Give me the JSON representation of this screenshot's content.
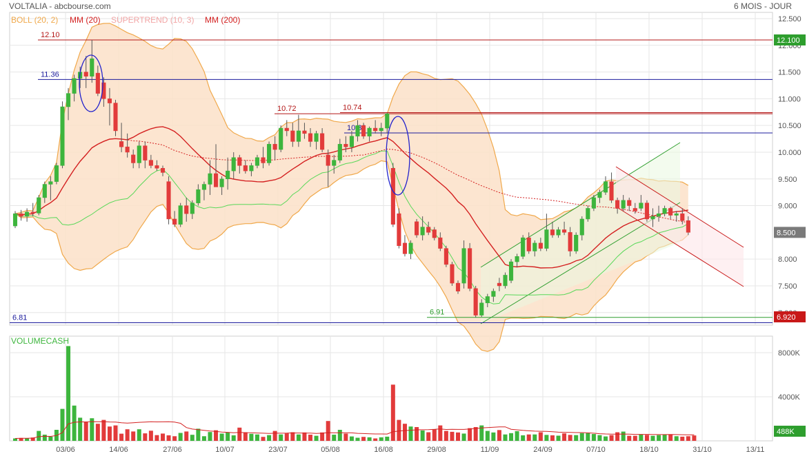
{
  "header": {
    "title": "VOLTALIA - abcbourse.com",
    "period": "6 MOIS - JOUR"
  },
  "legend": [
    {
      "label": "BOLL (20, 2)",
      "color": "#f0a84a"
    },
    {
      "label": "MM (20)",
      "color": "#d42020"
    },
    {
      "label": "SUPERTREND (10, 3)",
      "color": "#f2a6a6"
    },
    {
      "label": "MM (200)",
      "color": "#d42020"
    }
  ],
  "volume_label": "VOLUMECASH",
  "colors": {
    "up": "#3db53d",
    "down": "#e23b3b",
    "boll_fill": "#fbe0c8",
    "boll_line": "#f0a84a",
    "mm": "#d42020",
    "supertrend_up": "#58d858",
    "supertrend_down": "#f2a6a6",
    "grid": "#e6e6e6",
    "blue": "#1a1a9c"
  },
  "chart_data": [
    {
      "type": "candlestick",
      "name": "VOLTALIA",
      "ylim": [
        6.81,
        12.5
      ],
      "y_ticks": [
        "12.500",
        "12.000",
        "11.500",
        "11.000",
        "10.500",
        "10.000",
        "9.500",
        "9.000",
        "8.000",
        "7.500",
        "7.000"
      ],
      "x_ticks": [
        "03/06",
        "14/06",
        "27/06",
        "10/07",
        "23/07",
        "05/08",
        "16/08",
        "29/08",
        "11/09",
        "24/09",
        "07/10",
        "18/10",
        "31/10",
        "13/11"
      ],
      "price_badges": [
        {
          "value": "12.100",
          "color": "#2e9e2e"
        },
        {
          "value": "8.500",
          "color": "#7a7a7a"
        },
        {
          "value": "6.920",
          "color": "#c81818"
        }
      ],
      "horizontal_levels": [
        {
          "label": "12.10",
          "value": 12.1,
          "color": "#b31515"
        },
        {
          "label": "11.36",
          "value": 11.36,
          "color": "#1a1a9c"
        },
        {
          "label": "10.72",
          "value": 10.72,
          "color": "#b31515"
        },
        {
          "label": "10.74",
          "value": 10.74,
          "color": "#b31515"
        },
        {
          "label": "10.36",
          "value": 10.36,
          "color": "#1a1a9c"
        },
        {
          "label": "6.91",
          "value": 6.91,
          "color": "#2e9e2e"
        },
        {
          "label": "6.81",
          "value": 6.81,
          "color": "#1a1a9c"
        }
      ],
      "candles_ohlc": [
        [
          8.62,
          8.9,
          8.58,
          8.85
        ],
        [
          8.85,
          8.92,
          8.72,
          8.8
        ],
        [
          8.8,
          8.95,
          8.7,
          8.88
        ],
        [
          8.88,
          9.05,
          8.8,
          8.86
        ],
        [
          8.86,
          9.2,
          8.82,
          9.15
        ],
        [
          9.15,
          9.45,
          9.05,
          9.4
        ],
        [
          9.4,
          9.55,
          9.1,
          9.45
        ],
        [
          9.45,
          9.8,
          9.4,
          9.75
        ],
        [
          9.75,
          10.95,
          9.7,
          10.85
        ],
        [
          10.85,
          11.2,
          10.6,
          11.1
        ],
        [
          11.1,
          11.45,
          10.95,
          11.38
        ],
        [
          11.38,
          11.6,
          11.2,
          11.5
        ],
        [
          11.5,
          11.8,
          11.2,
          11.42
        ],
        [
          11.42,
          12.1,
          11.3,
          11.75
        ],
        [
          11.48,
          11.62,
          11.05,
          11.1
        ],
        [
          11.3,
          11.4,
          10.85,
          11.0
        ],
        [
          11.0,
          11.2,
          10.5,
          10.92
        ],
        [
          10.92,
          10.98,
          10.3,
          10.4
        ],
        [
          10.2,
          10.55,
          10.0,
          10.1
        ],
        [
          10.1,
          10.35,
          9.9,
          10.0
        ],
        [
          9.95,
          10.05,
          9.7,
          9.8
        ],
        [
          9.8,
          10.2,
          9.7,
          10.12
        ],
        [
          10.12,
          10.2,
          9.7,
          9.85
        ],
        [
          9.85,
          9.95,
          9.7,
          9.75
        ],
        [
          9.75,
          9.85,
          9.65,
          9.7
        ],
        [
          9.7,
          9.75,
          9.55,
          9.62
        ],
        [
          9.45,
          9.55,
          8.65,
          8.75
        ],
        [
          8.75,
          8.9,
          8.6,
          8.65
        ],
        [
          8.65,
          9.05,
          8.6,
          9.0
        ],
        [
          9.0,
          9.15,
          8.7,
          8.85
        ],
        [
          8.85,
          9.1,
          8.75,
          9.05
        ],
        [
          9.05,
          9.4,
          9.0,
          9.3
        ],
        [
          9.3,
          9.45,
          9.1,
          9.4
        ],
        [
          9.4,
          9.85,
          9.2,
          9.6
        ],
        [
          9.6,
          10.15,
          9.5,
          9.35
        ],
        [
          9.35,
          9.55,
          9.2,
          9.5
        ],
        [
          9.5,
          9.9,
          9.3,
          9.65
        ],
        [
          9.65,
          10.0,
          9.5,
          9.9
        ],
        [
          9.9,
          9.95,
          9.6,
          9.75
        ],
        [
          9.75,
          9.85,
          9.6,
          9.65
        ],
        [
          9.65,
          9.8,
          9.55,
          9.75
        ],
        [
          9.75,
          9.95,
          9.7,
          9.9
        ],
        [
          9.9,
          10.1,
          9.7,
          9.8
        ],
        [
          9.8,
          10.2,
          9.75,
          10.15
        ],
        [
          10.15,
          10.3,
          9.85,
          10.05
        ],
        [
          10.05,
          10.5,
          10.0,
          10.45
        ],
        [
          10.45,
          10.6,
          10.3,
          10.4
        ],
        [
          10.4,
          10.55,
          10.1,
          10.2
        ],
        [
          10.2,
          10.7,
          10.1,
          10.4
        ],
        [
          10.4,
          10.55,
          10.25,
          10.35
        ],
        [
          10.35,
          10.45,
          10.1,
          10.2
        ],
        [
          10.2,
          10.4,
          10.05,
          10.35
        ],
        [
          10.35,
          10.45,
          10.0,
          10.05
        ],
        [
          9.95,
          10.05,
          9.35,
          9.75
        ],
        [
          9.75,
          9.95,
          9.6,
          9.85
        ],
        [
          9.85,
          10.25,
          9.8,
          10.15
        ],
        [
          10.15,
          10.3,
          10.0,
          10.1
        ],
        [
          10.1,
          10.4,
          10.0,
          10.3
        ],
        [
          10.3,
          10.6,
          10.2,
          10.5
        ],
        [
          10.5,
          10.55,
          10.25,
          10.3
        ],
        [
          10.3,
          10.48,
          10.2,
          10.45
        ],
        [
          10.45,
          10.6,
          10.35,
          10.4
        ],
        [
          10.4,
          10.55,
          10.3,
          10.45
        ],
        [
          10.45,
          10.74,
          10.35,
          10.72
        ],
        [
          9.7,
          9.8,
          8.6,
          8.65
        ],
        [
          8.85,
          8.95,
          8.2,
          8.25
        ],
        [
          8.3,
          8.45,
          8.05,
          8.1
        ],
        [
          8.1,
          8.35,
          8.0,
          8.3
        ],
        [
          8.7,
          8.75,
          8.4,
          8.45
        ],
        [
          8.45,
          8.8,
          8.35,
          8.6
        ],
        [
          8.6,
          8.7,
          8.45,
          8.5
        ],
        [
          8.55,
          8.6,
          8.35,
          8.4
        ],
        [
          8.4,
          8.5,
          8.15,
          8.2
        ],
        [
          8.2,
          8.25,
          7.85,
          7.9
        ],
        [
          7.9,
          7.95,
          7.5,
          7.55
        ],
        [
          7.55,
          7.6,
          7.35,
          7.4
        ],
        [
          7.55,
          8.35,
          7.45,
          8.2
        ],
        [
          8.2,
          8.3,
          7.4,
          7.45
        ],
        [
          7.45,
          7.5,
          6.91,
          6.95
        ],
        [
          6.95,
          7.25,
          6.92,
          7.18
        ],
        [
          7.18,
          7.35,
          7.1,
          7.3
        ],
        [
          7.3,
          7.45,
          7.2,
          7.4
        ],
        [
          7.55,
          7.65,
          7.4,
          7.5
        ],
        [
          7.5,
          7.75,
          7.45,
          7.7
        ],
        [
          7.6,
          8.0,
          7.55,
          7.95
        ],
        [
          7.95,
          8.1,
          7.85,
          8.05
        ],
        [
          8.05,
          8.45,
          8.0,
          8.4
        ],
        [
          8.4,
          8.5,
          8.1,
          8.15
        ],
        [
          8.15,
          8.35,
          8.05,
          8.3
        ],
        [
          8.3,
          8.4,
          8.15,
          8.2
        ],
        [
          8.2,
          8.85,
          8.15,
          8.55
        ],
        [
          8.55,
          8.7,
          8.4,
          8.45
        ],
        [
          8.45,
          8.6,
          8.4,
          8.55
        ],
        [
          8.55,
          8.7,
          8.45,
          8.5
        ],
        [
          8.5,
          8.6,
          8.05,
          8.15
        ],
        [
          8.15,
          8.5,
          8.1,
          8.45
        ],
        [
          8.45,
          8.8,
          8.35,
          8.75
        ],
        [
          8.75,
          9.0,
          8.7,
          8.95
        ],
        [
          8.95,
          9.2,
          8.9,
          9.15
        ],
        [
          9.15,
          9.3,
          9.05,
          9.25
        ],
        [
          9.25,
          9.55,
          9.2,
          9.45
        ],
        [
          9.45,
          9.62,
          9.05,
          9.1
        ],
        [
          9.1,
          9.15,
          8.85,
          8.95
        ],
        [
          8.95,
          9.2,
          8.9,
          9.1
        ],
        [
          9.1,
          9.15,
          8.9,
          9.0
        ],
        [
          8.95,
          9.05,
          8.85,
          8.9
        ],
        [
          8.95,
          9.2,
          8.9,
          9.05
        ],
        [
          9.05,
          9.1,
          8.7,
          8.75
        ],
        [
          8.75,
          8.95,
          8.6,
          8.8
        ],
        [
          8.8,
          9.0,
          8.7,
          8.85
        ],
        [
          8.85,
          9.0,
          8.8,
          8.95
        ],
        [
          8.95,
          8.98,
          8.75,
          8.82
        ],
        [
          8.82,
          8.9,
          8.7,
          8.85
        ],
        [
          8.85,
          8.95,
          8.65,
          8.72
        ],
        [
          8.72,
          8.8,
          8.45,
          8.5
        ]
      ]
    },
    {
      "type": "bar",
      "name": "VOLUMECASH",
      "unit": "K",
      "y_ticks": [
        "8000K",
        "4000K"
      ],
      "ylim": [
        0,
        9000
      ],
      "last_value_badge": "488K",
      "values_k": [
        220,
        260,
        230,
        300,
        900,
        560,
        380,
        1000,
        2900,
        8600,
        3200,
        2100,
        1700,
        2050,
        1550,
        1900,
        1300,
        1400,
        650,
        1050,
        850,
        1050,
        680,
        920,
        520,
        660,
        500,
        420,
        720,
        850,
        550,
        1100,
        420,
        800,
        960,
        660,
        780,
        500,
        1200,
        780,
        640,
        580,
        360,
        520,
        900,
        580,
        680,
        780,
        580,
        760,
        560,
        460,
        760,
        1800,
        560,
        1000,
        660,
        400,
        280,
        360,
        320,
        220,
        320,
        380,
        5100,
        1900,
        1550,
        1300,
        1250,
        940,
        780,
        1050,
        1400,
        900,
        820,
        760,
        660,
        1150,
        1250,
        1400,
        900,
        760,
        980,
        580,
        700,
        880,
        500,
        580,
        580,
        780,
        540,
        500,
        470,
        680,
        540,
        520,
        700,
        700,
        620,
        520,
        400,
        520,
        780,
        840,
        460,
        460,
        580,
        540,
        460,
        520,
        560,
        580,
        420,
        380,
        420,
        488
      ]
    }
  ]
}
